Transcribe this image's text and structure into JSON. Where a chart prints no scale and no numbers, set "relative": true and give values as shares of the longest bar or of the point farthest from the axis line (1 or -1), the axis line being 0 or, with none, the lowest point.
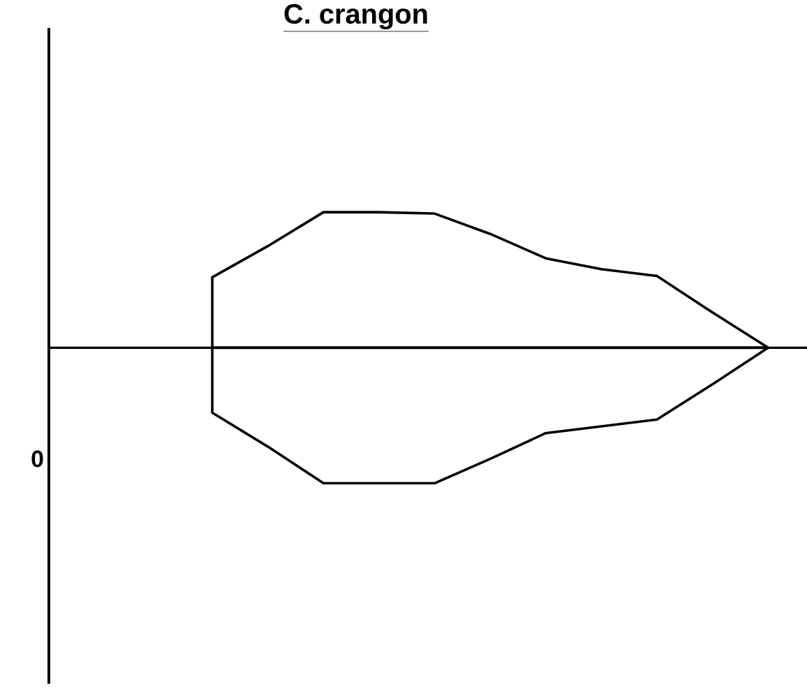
{
  "chart_data": {
    "type": "area",
    "title": "C. crangon",
    "relative": true,
    "categories": [
      null,
      null,
      null,
      null,
      null,
      null,
      null,
      null,
      null,
      null,
      null
    ],
    "series": [
      {
        "color": "#000000",
        "values": [
          0.52,
          0.75,
          1,
          1,
          0.99,
          0.84,
          0.66,
          0.58,
          0.53,
          0.26,
          0
        ]
      },
      {
        "color": "#000000",
        "values": [
          -0.48,
          -0.73,
          -1,
          -1,
          -1,
          -0.82,
          -0.63,
          -0.58,
          -0.53,
          -0.27,
          0
        ]
      }
    ],
    "annotations": [
      "0"
    ]
  }
}
